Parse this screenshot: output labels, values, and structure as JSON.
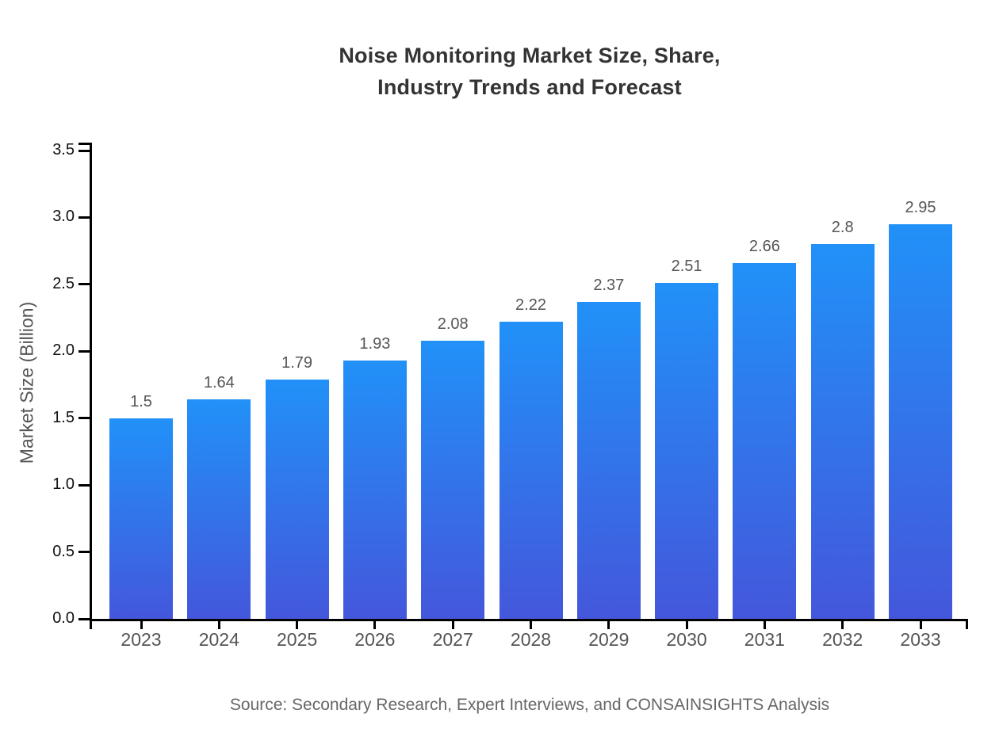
{
  "chart_data": {
    "type": "bar",
    "title_lines": [
      "Noise Monitoring Market Size, Share,",
      "Industry Trends and Forecast"
    ],
    "title": "Noise Monitoring Market Size, Share, Industry Trends and Forecast",
    "categories": [
      "2023",
      "2024",
      "2025",
      "2026",
      "2027",
      "2028",
      "2029",
      "2030",
      "2031",
      "2032",
      "2033"
    ],
    "values": [
      1.5,
      1.64,
      1.79,
      1.93,
      2.08,
      2.22,
      2.37,
      2.51,
      2.66,
      2.8,
      2.95
    ],
    "value_labels": [
      "1.5",
      "1.64",
      "1.79",
      "1.93",
      "2.08",
      "2.22",
      "2.37",
      "2.51",
      "2.66",
      "2.8",
      "2.95"
    ],
    "xlabel": "",
    "ylabel": "Market Size (Billion)",
    "ylim": [
      0,
      3.5
    ],
    "ytick_step": 0.5,
    "ytick_labels": [
      "0.0",
      "0.5",
      "1.0",
      "1.5",
      "2.0",
      "2.5",
      "3.0",
      "3.5"
    ],
    "grid": false,
    "legend": null,
    "source": "Source: Secondary Research, Expert Interviews, and CONSAINSIGHTS Analysis"
  },
  "colors": {
    "bar_gradient_top": "#2191F8",
    "bar_gradient_bottom": "#4457DB",
    "axis": "#000000",
    "title_text": "#333333",
    "ytick_text": "#111111",
    "xtick_text": "#555555",
    "value_label_text": "#555555",
    "source_text": "#666666",
    "background": "#FFFFFF"
  }
}
